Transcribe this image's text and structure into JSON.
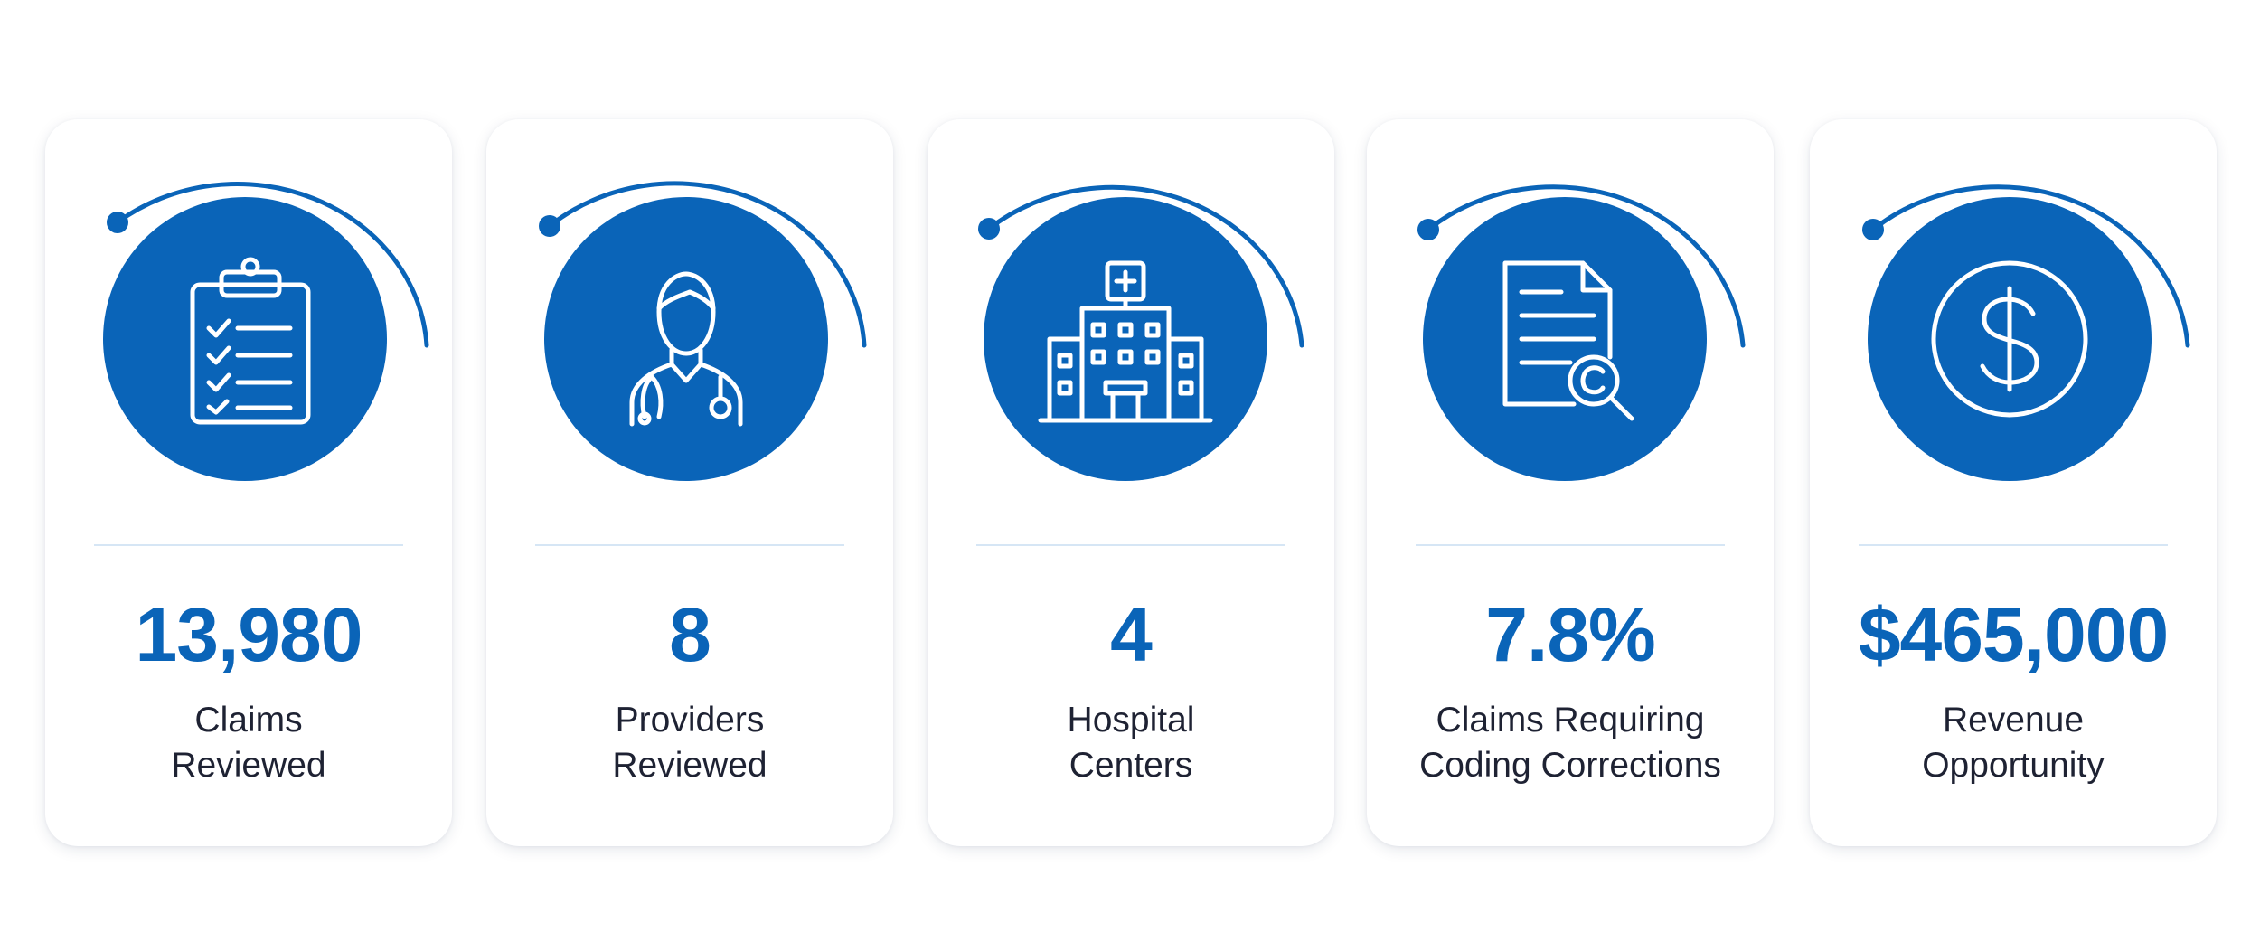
{
  "colors": {
    "accent": "#0a64b8",
    "text": "#1e2233",
    "divider": "#d6e6f5",
    "card_background": "#ffffff"
  },
  "cards": [
    {
      "icon": "clipboard-checklist-icon",
      "value": "13,980",
      "label_line1": "Claims",
      "label_line2": "Reviewed"
    },
    {
      "icon": "doctor-icon",
      "value": "8",
      "label_line1": "Providers",
      "label_line2": "Reviewed"
    },
    {
      "icon": "hospital-icon",
      "value": "4",
      "label_line1": "Hospital",
      "label_line2": "Centers"
    },
    {
      "icon": "document-search-icon",
      "value": "7.8%",
      "label_line1": "Claims Requiring",
      "label_line2": "Coding Corrections"
    },
    {
      "icon": "dollar-icon",
      "value": "$465,000",
      "label_line1": "Revenue",
      "label_line2": "Opportunity"
    }
  ]
}
